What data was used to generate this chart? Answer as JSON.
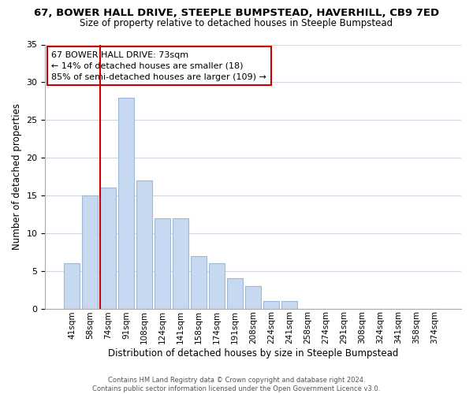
{
  "title": "67, BOWER HALL DRIVE, STEEPLE BUMPSTEAD, HAVERHILL, CB9 7ED",
  "subtitle": "Size of property relative to detached houses in Steeple Bumpstead",
  "xlabel": "Distribution of detached houses by size in Steeple Bumpstead",
  "ylabel": "Number of detached properties",
  "bin_labels": [
    "41sqm",
    "58sqm",
    "74sqm",
    "91sqm",
    "108sqm",
    "124sqm",
    "141sqm",
    "158sqm",
    "174sqm",
    "191sqm",
    "208sqm",
    "224sqm",
    "241sqm",
    "258sqm",
    "274sqm",
    "291sqm",
    "308sqm",
    "324sqm",
    "341sqm",
    "358sqm",
    "374sqm"
  ],
  "bar_heights": [
    6,
    15,
    16,
    28,
    17,
    12,
    12,
    7,
    6,
    4,
    3,
    1,
    1,
    0,
    0,
    0,
    0,
    0,
    0,
    0,
    0
  ],
  "bar_color": "#c6d9f1",
  "bar_edge_color": "#a0b8d8",
  "vline_color": "#cc0000",
  "vline_bar_index": 2,
  "annotation_line1": "67 BOWER HALL DRIVE: 73sqm",
  "annotation_line2": "← 14% of detached houses are smaller (18)",
  "annotation_line3": "85% of semi-detached houses are larger (109) →",
  "annotation_box_color": "#ffffff",
  "annotation_box_edgecolor": "#cc0000",
  "ylim": [
    0,
    35
  ],
  "yticks": [
    0,
    5,
    10,
    15,
    20,
    25,
    30,
    35
  ],
  "footer_line1": "Contains HM Land Registry data © Crown copyright and database right 2024.",
  "footer_line2": "Contains public sector information licensed under the Open Government Licence v3.0.",
  "background_color": "#ffffff",
  "grid_color": "#d0d8e8"
}
